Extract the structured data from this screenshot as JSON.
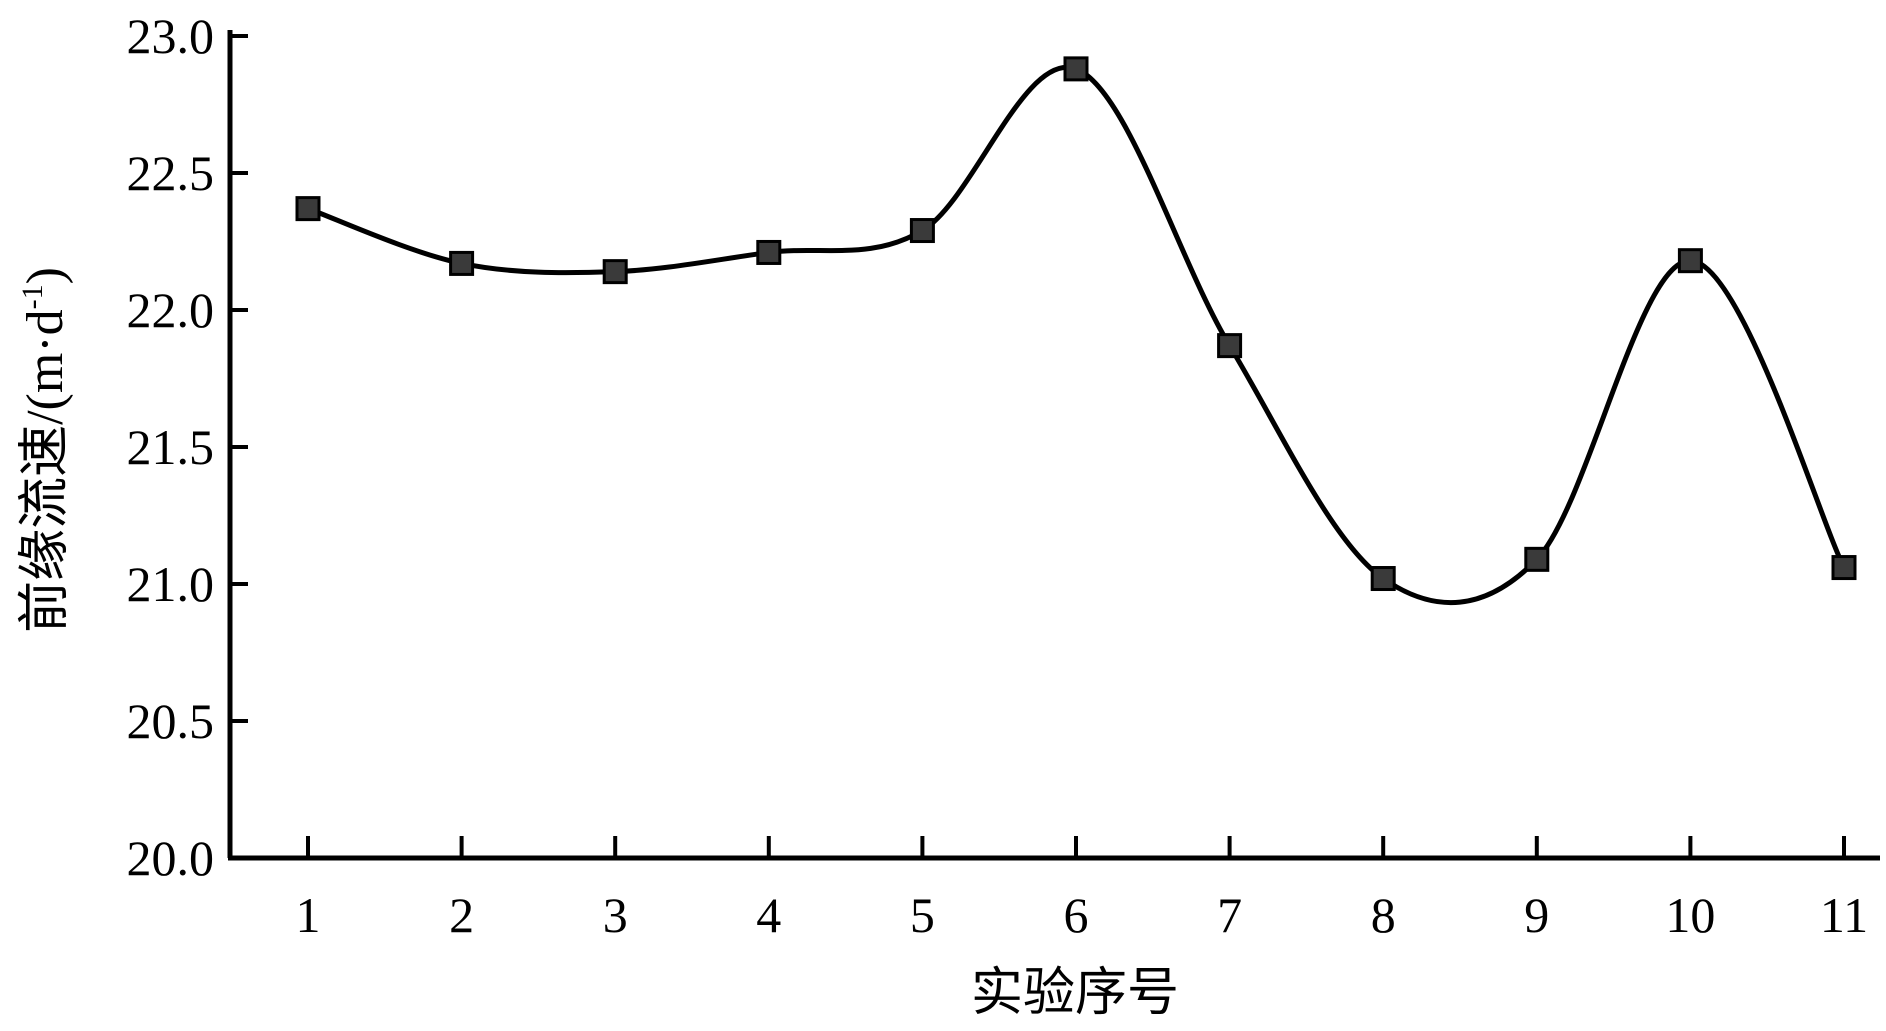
{
  "chart_data": {
    "type": "line",
    "title": "",
    "xlabel": "实验序号",
    "ylabel": "前缘流速/(m·d⁻¹)",
    "ylabel_parts": {
      "main": "前缘流速/(m·d",
      "sup": "-1",
      "close": ")"
    },
    "x": [
      1,
      2,
      3,
      4,
      5,
      6,
      7,
      8,
      9,
      10,
      11
    ],
    "x_tick_labels": [
      "1",
      "2",
      "3",
      "4",
      "5",
      "6",
      "7",
      "8",
      "9",
      "10",
      "11"
    ],
    "y": [
      22.37,
      22.17,
      22.14,
      22.21,
      22.29,
      22.88,
      21.87,
      21.02,
      21.09,
      22.18,
      21.06
    ],
    "ylim": [
      20.0,
      23.0
    ],
    "y_ticks": [
      20.0,
      20.5,
      21.0,
      21.5,
      22.0,
      22.5,
      23.0
    ],
    "y_tick_labels": [
      "20.0",
      "20.5",
      "21.0",
      "21.5",
      "22.0",
      "22.5",
      "23.0"
    ],
    "grid": false,
    "smooth": true,
    "marker": "square",
    "colors": {
      "line": "#000000",
      "marker_fill": "#3a3a3a"
    }
  }
}
